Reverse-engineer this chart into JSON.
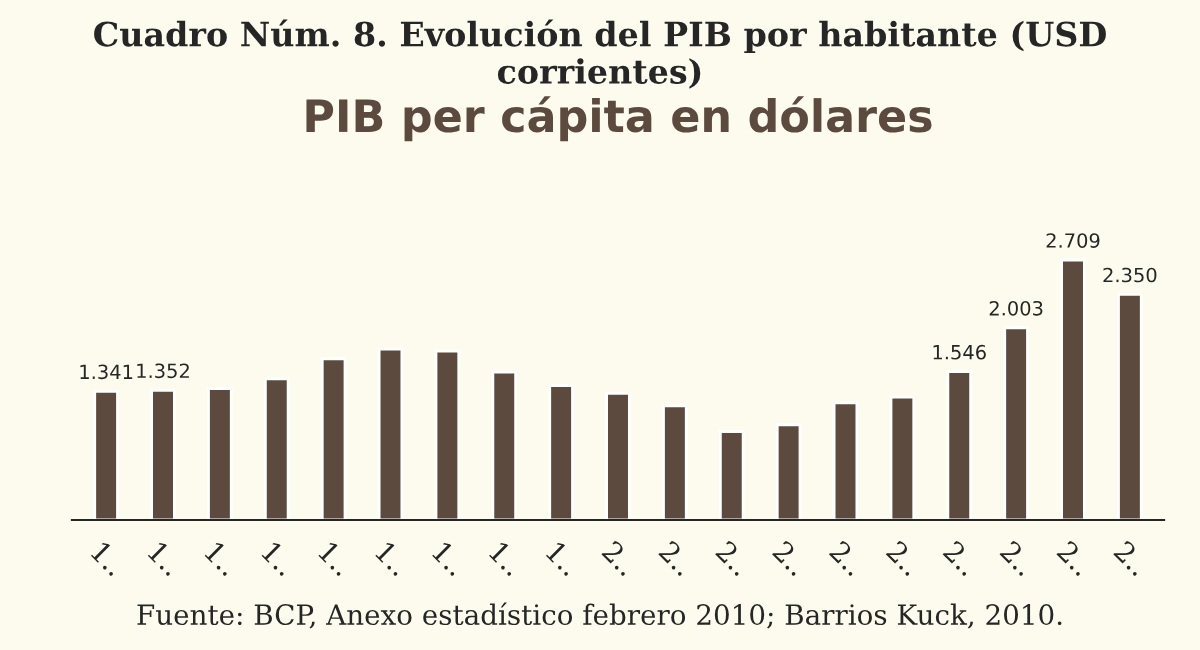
{
  "chart_data": {
    "type": "bar",
    "title": "Cuadro Núm. 8. Evolución del PIB por habitante (USD corrientes)",
    "subtitle": "PIB per cápita en dólares",
    "categories": [
      "1..",
      "1..",
      "1..",
      "1..",
      "1..",
      "1..",
      "1..",
      "1..",
      "1..",
      "2..",
      "2..",
      "2..",
      "2..",
      "2..",
      "2..",
      "2..",
      "2..",
      "2..",
      "2.."
    ],
    "values": [
      1341,
      1352,
      1370,
      1470,
      1680,
      1780,
      1760,
      1540,
      1400,
      1320,
      1190,
      920,
      990,
      1220,
      1280,
      1546,
      2003,
      2709,
      2350
    ],
    "value_labels": [
      "1.341",
      "1.352",
      null,
      null,
      null,
      null,
      null,
      null,
      null,
      null,
      null,
      null,
      null,
      null,
      null,
      "1.546",
      "2.003",
      "2.709",
      "2.350"
    ],
    "color": "#5b4a3d",
    "tick_labels": "x",
    "grid": false,
    "annotations": [
      "Fuente: BCP, Anexo estadístico febrero 2010; Barrios Kuck, 2010."
    ]
  }
}
